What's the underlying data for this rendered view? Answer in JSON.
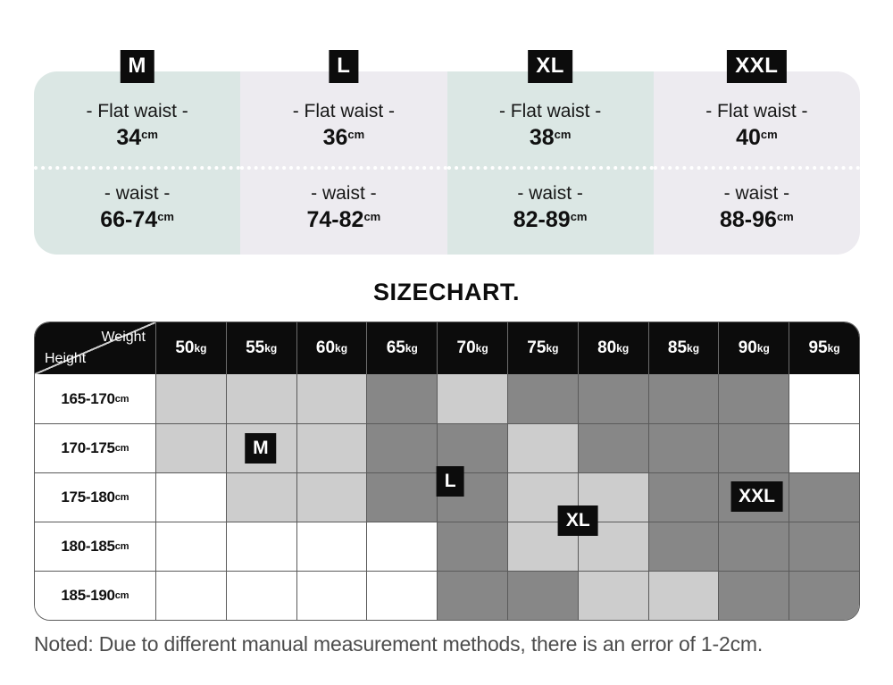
{
  "header_cards": [
    {
      "size": "M",
      "tone": "card_teal",
      "flat_waist_label": "- Flat waist -",
      "flat_waist_value": "34",
      "waist_label": "- waist -",
      "waist_value": "66-74",
      "unit": "cm"
    },
    {
      "size": "L",
      "tone": "card_lavender",
      "flat_waist_label": "- Flat waist -",
      "flat_waist_value": "36",
      "waist_label": "- waist -",
      "waist_value": "74-82",
      "unit": "cm"
    },
    {
      "size": "XL",
      "tone": "card_teal",
      "flat_waist_label": "- Flat waist -",
      "flat_waist_value": "38",
      "waist_label": "- waist -",
      "waist_value": "82-89",
      "unit": "cm"
    },
    {
      "size": "XXL",
      "tone": "card_lavender",
      "flat_waist_label": "- Flat waist -",
      "flat_waist_value": "40",
      "waist_label": "- waist -",
      "waist_value": "88-96",
      "unit": "cm"
    }
  ],
  "chart_data": {
    "type": "heatmap",
    "title": "SIZECHART.",
    "x_axis_label": "Weight",
    "y_axis_label": "Height",
    "x_unit": "kg",
    "y_unit": "cm",
    "x_ticks": [
      "50",
      "55",
      "60",
      "65",
      "70",
      "75",
      "80",
      "85",
      "90",
      "95"
    ],
    "y_ticks": [
      "165-170",
      "170-175",
      "175-180",
      "180-185",
      "185-190"
    ],
    "cell_states": [
      [
        "light",
        "light",
        "light",
        "dark",
        "light",
        "dark",
        "dark",
        "dark",
        "dark",
        "white"
      ],
      [
        "light",
        "light",
        "light",
        "dark",
        "dark",
        "light",
        "dark",
        "dark",
        "dark",
        "white"
      ],
      [
        "white",
        "light",
        "light",
        "dark",
        "dark",
        "light",
        "light",
        "dark",
        "dark",
        "dark"
      ],
      [
        "white",
        "white",
        "white",
        "white",
        "dark",
        "light",
        "light",
        "dark",
        "dark",
        "dark"
      ],
      [
        "white",
        "white",
        "white",
        "white",
        "dark",
        "dark",
        "light",
        "light",
        "dark",
        "dark"
      ]
    ],
    "size_markers": [
      {
        "label": "M",
        "at": "55kg / 170-175cm",
        "x_pct": 27.4,
        "y_pct": 42.2
      },
      {
        "label": "L",
        "at": "70kg / 170-175 and 175-180 edge",
        "x_pct": 50.4,
        "y_pct": 53.5
      },
      {
        "label": "XL",
        "at": "75-80kg / 175-180 and 180-185 edge",
        "x_pct": 65.9,
        "y_pct": 66.7
      },
      {
        "label": "XXL",
        "at": "90kg / 175-180cm",
        "x_pct": 87.6,
        "y_pct": 58.6
      }
    ]
  },
  "note": "Noted: Due to different manual measurement methods, there is an error of 1-2cm.",
  "colors": {
    "card_teal": "#dbe7e4",
    "card_lavender": "#edebf0",
    "badge_bg": "#0c0c0c",
    "badge_text": "#ffffff",
    "header_bg": "#0c0c0c",
    "cell_light": "#cdcdcd",
    "cell_dark": "#878787",
    "cell_white": "#ffffff",
    "grid_line": "#5a5a5a",
    "note_text": "#4c4c4c"
  }
}
